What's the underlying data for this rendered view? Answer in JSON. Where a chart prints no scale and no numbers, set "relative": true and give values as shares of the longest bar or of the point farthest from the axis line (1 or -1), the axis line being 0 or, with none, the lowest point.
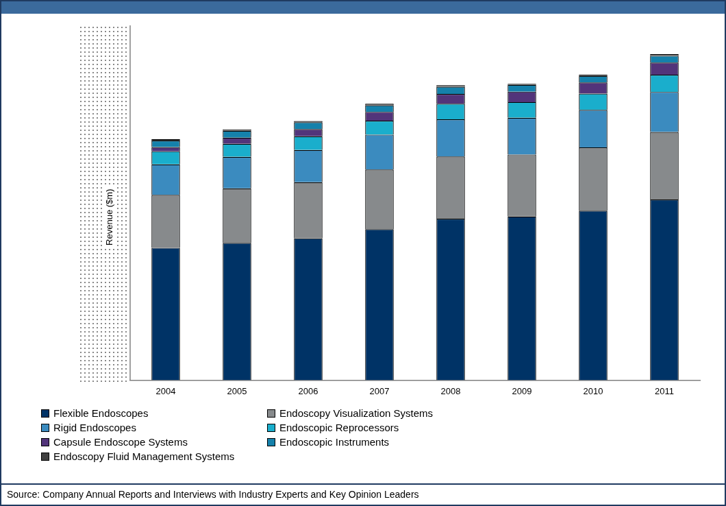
{
  "chart_data": {
    "type": "bar",
    "stacked": true,
    "relative": true,
    "ylabel": "Revenue ($m)",
    "categories": [
      "2004",
      "2005",
      "2006",
      "2007",
      "2008",
      "2009",
      "2010",
      "2011"
    ],
    "legend": "bottom",
    "grid": false,
    "series": [
      {
        "name": "Flexible Endoscopes",
        "color": "#003366",
        "values": [
          0.406,
          0.421,
          0.435,
          0.463,
          0.495,
          0.502,
          0.52,
          0.554
        ]
      },
      {
        "name": "Endoscopy Visualization Systems",
        "color": "#878a8c",
        "values": [
          0.162,
          0.167,
          0.172,
          0.183,
          0.191,
          0.19,
          0.194,
          0.207
        ]
      },
      {
        "name": "Rigid Endoscopes",
        "color": "#3b8bbf",
        "values": [
          0.094,
          0.097,
          0.099,
          0.107,
          0.114,
          0.113,
          0.115,
          0.123
        ]
      },
      {
        "name": "Endoscopic Reprocessors",
        "color": "#1aaecc",
        "values": [
          0.04,
          0.04,
          0.042,
          0.043,
          0.048,
          0.048,
          0.05,
          0.053
        ]
      },
      {
        "name": "Capsule Endoscope Systems",
        "color": "#52347a",
        "values": [
          0.013,
          0.019,
          0.022,
          0.027,
          0.03,
          0.032,
          0.034,
          0.037
        ]
      },
      {
        "name": "Endoscopic Instruments",
        "color": "#1581ab",
        "values": [
          0.02,
          0.021,
          0.021,
          0.02,
          0.022,
          0.021,
          0.02,
          0.021
        ]
      },
      {
        "name": "Endoscopy Fluid Management Systems",
        "color": "#404040",
        "values": [
          0.004,
          0.004,
          0.004,
          0.005,
          0.005,
          0.003,
          0.004,
          0.005
        ]
      }
    ],
    "annotations": [
      "Source: Company Annual Reports and Interviews with Industry Experts and Key Opinion Leaders"
    ]
  }
}
